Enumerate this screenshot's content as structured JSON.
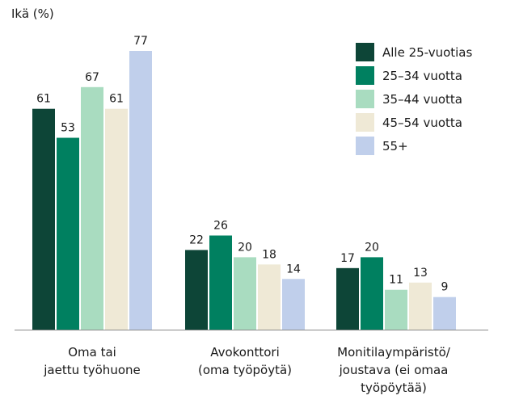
{
  "chart_data": {
    "type": "bar",
    "ylabel": "Ikä (%)",
    "categories": [
      [
        "Oma tai",
        "jaettu työhuone"
      ],
      [
        "Avokonttori",
        "(oma työpöytä)"
      ],
      [
        "Monitilaympäristö/",
        "joustava (ei omaa",
        "työpöytää)"
      ]
    ],
    "series": [
      {
        "name": "Alle 25-vuotias",
        "color": "#0d4537",
        "values": [
          61,
          22,
          17
        ]
      },
      {
        "name": "25–34 vuotta",
        "color": "#008060",
        "values": [
          53,
          26,
          20
        ]
      },
      {
        "name": "35–44 vuotta",
        "color": "#a9dcc0",
        "values": [
          67,
          20,
          11
        ]
      },
      {
        "name": "45–54 vuotta",
        "color": "#efe9d6",
        "values": [
          61,
          18,
          13
        ]
      },
      {
        "name": "55+",
        "color": "#c0cfeb",
        "values": [
          77,
          14,
          9
        ]
      }
    ],
    "ylim": [
      0,
      77
    ],
    "grid": false,
    "legend_position": "top-right",
    "data_labels": true
  }
}
